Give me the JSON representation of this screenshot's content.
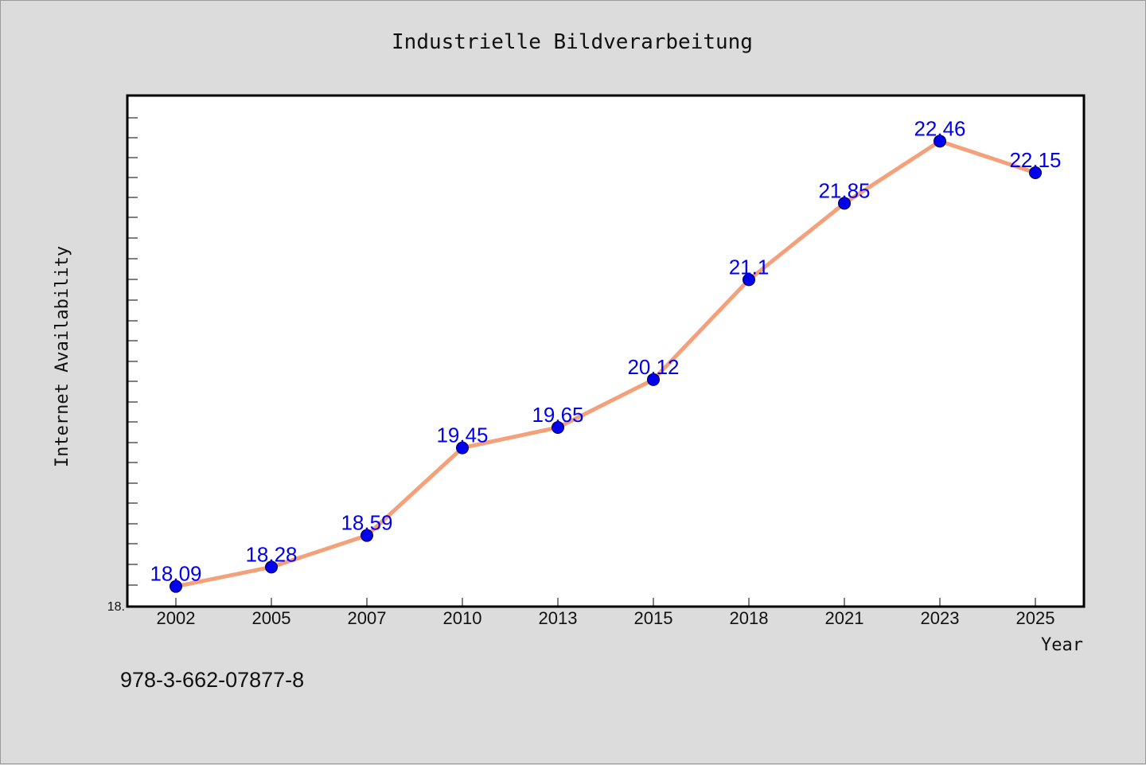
{
  "chart_data": {
    "type": "line",
    "title": "Industrielle Bildverarbeitung",
    "xlabel": "Year",
    "ylabel": "Internet Availability",
    "categories": [
      "2002",
      "2005",
      "2007",
      "2010",
      "2013",
      "2015",
      "2018",
      "2021",
      "2023",
      "2025"
    ],
    "series": [
      {
        "values": [
          18.09,
          18.28,
          18.59,
          19.45,
          19.65,
          20.12,
          21.1,
          21.85,
          22.46,
          22.15
        ],
        "labels": [
          "18.09",
          "18.28",
          "18.59",
          "19.45",
          "19.65",
          "20.12",
          "21.1",
          "21.85",
          "22.46",
          "22.15"
        ],
        "line_color": "#f4a07a",
        "marker_color": "#0000ee"
      }
    ],
    "ylim": [
      17.9,
      22.9
    ],
    "yticks": [
      "18."
    ],
    "grid": false
  },
  "footer": {
    "isbn": "978-3-662-07877-8"
  },
  "colors": {
    "background": "#dcdcdc",
    "plot_background": "#ffffff",
    "line": "#f4a07a",
    "marker": "#0000ee",
    "data_label": "#0000ee"
  }
}
